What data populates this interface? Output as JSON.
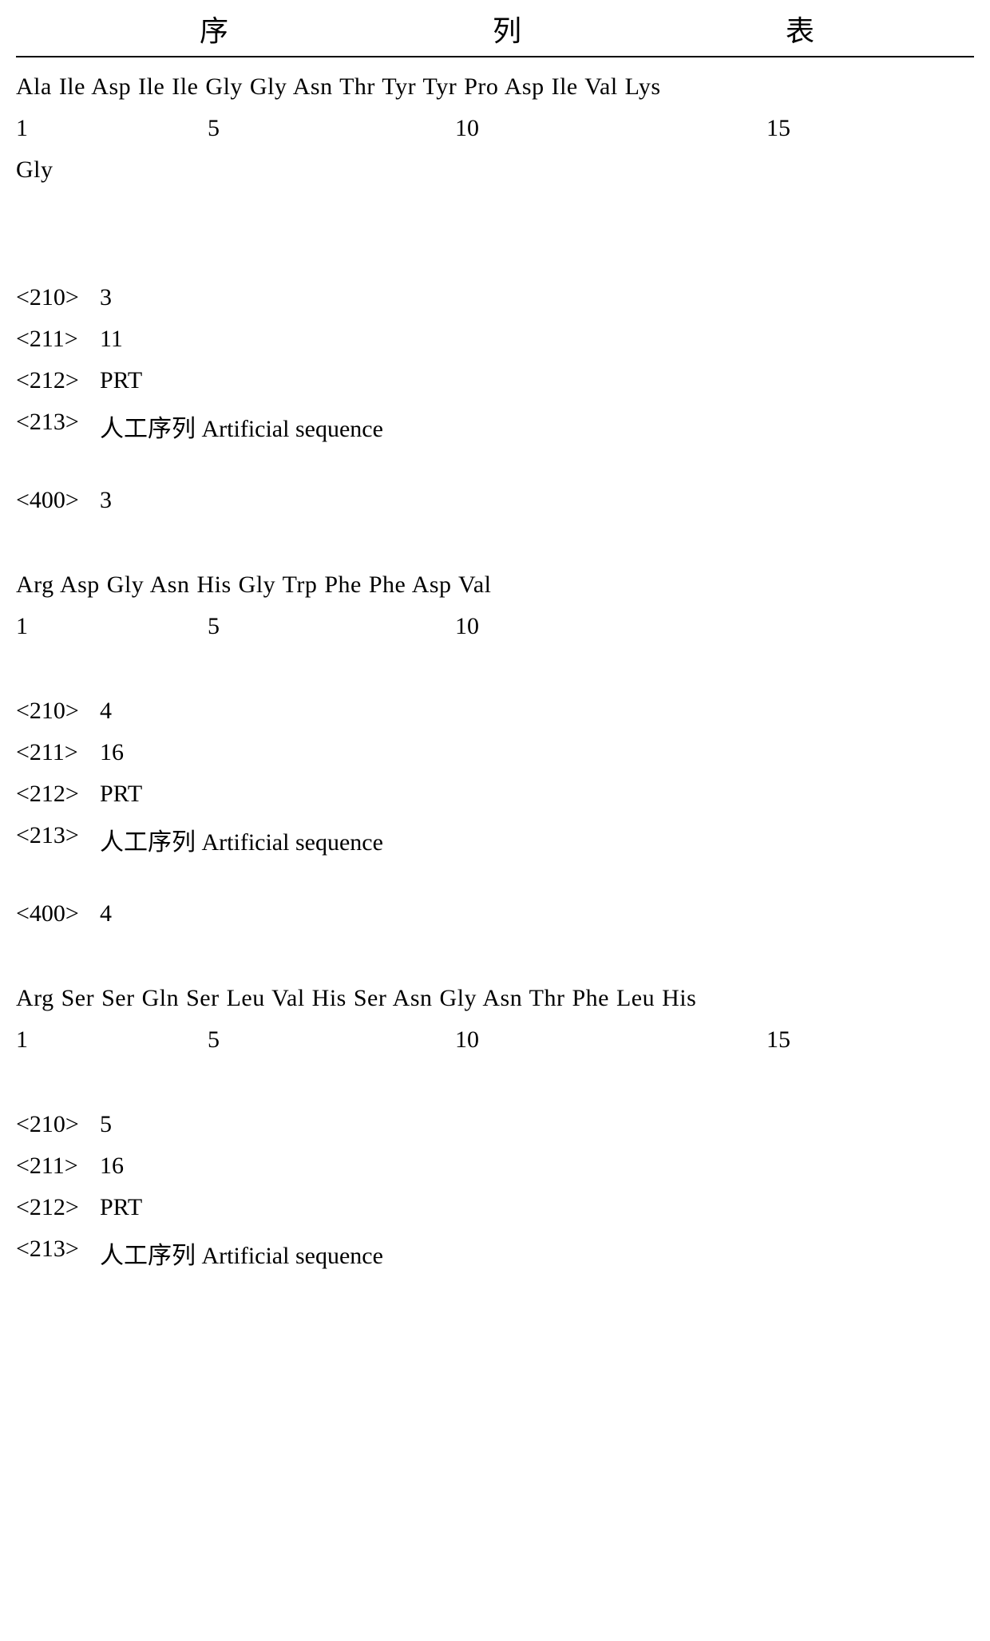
{
  "title": {
    "char1": "序",
    "char2": "列",
    "char3": "表"
  },
  "seq2": {
    "line1": "Ala Ile Asp Ile Ile Gly Gly Asn Thr Tyr Tyr Pro Asp Ile Val Lys",
    "line2": "Gly",
    "nums": {
      "n1": "1",
      "n5": "5",
      "n10": "10",
      "n15": "15"
    }
  },
  "block3": {
    "m210": {
      "tag": "<210>",
      "val": "3"
    },
    "m211": {
      "tag": "<211>",
      "val": "11"
    },
    "m212": {
      "tag": "<212>",
      "val": "PRT"
    },
    "m213": {
      "tag": "<213>",
      "val": "人工序列 Artificial sequence"
    },
    "m400": {
      "tag": "<400>",
      "val": "3"
    },
    "seq": "Arg Asp Gly Asn His Gly Trp Phe Phe Asp Val",
    "nums": {
      "n1": "1",
      "n5": "5",
      "n10": "10"
    }
  },
  "block4": {
    "m210": {
      "tag": "<210>",
      "val": "4"
    },
    "m211": {
      "tag": "<211>",
      "val": "16"
    },
    "m212": {
      "tag": "<212>",
      "val": "PRT"
    },
    "m213": {
      "tag": "<213>",
      "val": "人工序列 Artificial sequence"
    },
    "m400": {
      "tag": "<400>",
      "val": "4"
    },
    "seq": "Arg Ser Ser Gln Ser Leu Val His Ser Asn Gly Asn Thr Phe Leu His",
    "nums": {
      "n1": "1",
      "n5": "5",
      "n10": "10",
      "n15": "15"
    }
  },
  "block5": {
    "m210": {
      "tag": "<210>",
      "val": "5"
    },
    "m211": {
      "tag": "<211>",
      "val": "16"
    },
    "m212": {
      "tag": "<212>",
      "val": "PRT"
    },
    "m213": {
      "tag": "<213>",
      "val": "人工序列 Artificial sequence"
    }
  }
}
